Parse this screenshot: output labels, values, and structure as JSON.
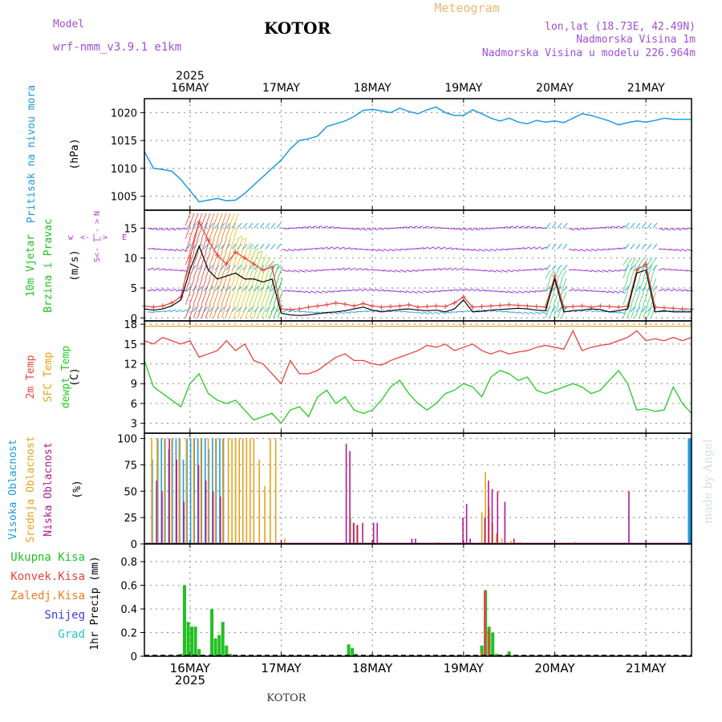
{
  "header": {
    "model_label": "Model",
    "model_name": "wrf-nmm_v3.9.1 e1km",
    "station": "KOTOR",
    "title": "Meteogram",
    "coords": "lon,lat (18.73E, 42.49N)",
    "elevation": "Nadmorska Visina 1m",
    "model_elevation": "Nadmorska Visina u modelu 226.964m",
    "footer_station": "KOTOR",
    "watermark": "made by Angel"
  },
  "colors": {
    "pressure": "#1e9be0",
    "temp2m": "#e8423c",
    "sfc_temp": "#e7a21a",
    "dewpt": "#22cc22",
    "high_cloud": "#1e9be0",
    "mid_cloud": "#e7a21a",
    "low_cloud": "#b5198f",
    "total_precip": "#22c022",
    "conv_precip": "#e8423c",
    "frz_precip": "#f07a1e",
    "snow": "#3b3bd9",
    "graupel": "#1ec9c9",
    "wind_label": "#22c022",
    "dir_label": "#b03ad0",
    "header_purple": "#a050d8",
    "title_orange": "#e9b870"
  },
  "chart_data": [
    {
      "type": "line",
      "panel": "pressure",
      "ylabel": "(hPa)",
      "side_label": "Pritisak na nivou mora",
      "yticks": [
        1005,
        1010,
        1015,
        1020
      ],
      "ylim": [
        1002.5,
        1022.5
      ],
      "x_day": [
        -0.5,
        -0.4,
        -0.3,
        -0.2,
        -0.1,
        0.0,
        0.1,
        0.2,
        0.3,
        0.4,
        0.5,
        0.6,
        0.7,
        0.8,
        0.9,
        1.0,
        1.1,
        1.2,
        1.3,
        1.4,
        1.5,
        1.6,
        1.7,
        1.8,
        1.9,
        2.0,
        2.1,
        2.2,
        2.3,
        2.4,
        2.5,
        2.6,
        2.7,
        2.8,
        2.9,
        3.0,
        3.1,
        3.2,
        3.3,
        3.4,
        3.5,
        3.6,
        3.7,
        3.8,
        3.9,
        4.0,
        4.1,
        4.2,
        4.3,
        4.4,
        4.5,
        4.6,
        4.7,
        4.8,
        4.9,
        5.0,
        5.1,
        5.2,
        5.3,
        5.4,
        5.5
      ],
      "values": [
        1013.0,
        1010.0,
        1009.8,
        1009.5,
        1008.0,
        1006.0,
        1004.0,
        1004.3,
        1004.6,
        1004.2,
        1004.3,
        1005.5,
        1007.0,
        1008.5,
        1010.0,
        1011.5,
        1013.5,
        1015.0,
        1015.3,
        1015.8,
        1017.5,
        1018.0,
        1018.5,
        1019.3,
        1020.4,
        1020.6,
        1020.3,
        1020.0,
        1020.8,
        1020.2,
        1019.8,
        1020.5,
        1021.0,
        1020.0,
        1019.5,
        1019.5,
        1020.5,
        1019.8,
        1019.0,
        1018.5,
        1019.0,
        1018.3,
        1018.0,
        1018.6,
        1018.3,
        1018.5,
        1018.2,
        1019.0,
        1019.8,
        1019.5,
        1019.0,
        1018.5,
        1017.8,
        1018.2,
        1018.5,
        1018.3,
        1018.6,
        1019.0,
        1018.8,
        1018.8,
        1018.8
      ]
    },
    {
      "type": "line",
      "panel": "wind",
      "ylabel": "(m/s)",
      "side_label_1": "10m Vjetar",
      "side_label_2": "Brzina i Pravac",
      "dir_labels": [
        "w",
        "<-",
        "|",
        "->",
        "E"
      ],
      "dir_labels_v": [
        "S<",
        "-",
        "|",
        "-",
        ">",
        "N"
      ],
      "yticks": [
        0,
        5,
        10,
        15
      ],
      "ylim": [
        -0.5,
        18
      ],
      "levels": [
        1.0,
        4.5,
        8.0,
        11.5,
        15.0
      ],
      "series": [
        {
          "name": "",
          "x_day": [
            -0.5,
            -0.4,
            -0.3,
            -0.2,
            -0.1,
            0.0,
            0.1,
            0.2,
            0.3,
            0.4,
            0.5,
            0.6,
            0.7,
            0.8,
            0.9,
            1.0,
            1.1,
            1.2,
            1.3,
            1.4,
            1.5,
            1.6,
            1.7,
            1.8,
            1.9,
            2.0,
            2.1,
            2.2,
            2.3,
            2.4,
            2.5,
            2.6,
            2.7,
            2.8,
            2.9,
            3.0,
            3.1,
            3.2,
            3.3,
            3.4,
            3.5,
            3.6,
            3.7,
            3.8,
            3.9,
            4.0,
            4.1,
            4.2,
            4.3,
            4.4,
            4.5,
            4.6,
            4.7,
            4.8,
            4.9,
            5.0,
            5.1,
            5.2,
            5.3,
            5.4,
            5.5
          ],
          "values": [
            1.5,
            1.3,
            1.5,
            2.0,
            3.0,
            8.0,
            12.0,
            8.0,
            6.5,
            7.0,
            7.5,
            6.5,
            6.5,
            6.0,
            6.5,
            0.8,
            0.5,
            0.4,
            0.5,
            0.7,
            0.9,
            1.0,
            1.2,
            1.5,
            1.8,
            1.3,
            1.0,
            1.2,
            1.4,
            1.5,
            1.3,
            1.2,
            1.3,
            1.0,
            1.5,
            3.0,
            1.0,
            1.1,
            1.3,
            1.4,
            1.5,
            1.6,
            1.5,
            1.3,
            1.2,
            6.5,
            1.0,
            1.2,
            1.3,
            1.5,
            1.4,
            1.0,
            1.2,
            1.5,
            7.5,
            8.0,
            1.0,
            1.2,
            1.0,
            1.0,
            1.0
          ]
        },
        {
          "name": "",
          "x_day": [
            -0.5,
            -0.4,
            -0.3,
            -0.2,
            -0.1,
            0.0,
            0.1,
            0.2,
            0.3,
            0.4,
            0.5,
            0.6,
            0.7,
            0.8,
            0.9,
            1.0,
            1.1,
            1.2,
            1.3,
            1.4,
            1.5,
            1.6,
            1.7,
            1.8,
            1.9,
            2.0,
            2.1,
            2.2,
            2.3,
            2.4,
            2.5,
            2.6,
            2.7,
            2.8,
            2.9,
            3.0,
            3.1,
            3.2,
            3.3,
            3.4,
            3.5,
            3.6,
            3.7,
            3.8,
            3.9,
            4.0,
            4.1,
            4.2,
            4.3,
            4.4,
            4.5,
            4.6,
            4.7,
            4.8,
            4.9,
            5.0,
            5.1,
            5.2,
            5.3,
            5.4,
            5.5
          ],
          "values": [
            2.0,
            1.8,
            2.0,
            2.5,
            3.5,
            10.0,
            16.0,
            13.0,
            10.5,
            9.0,
            11.0,
            10.0,
            9.0,
            8.0,
            8.5,
            1.5,
            1.4,
            1.5,
            1.8,
            2.0,
            2.2,
            2.5,
            2.3,
            2.0,
            2.4,
            2.0,
            1.8,
            1.9,
            2.0,
            2.2,
            1.8,
            1.9,
            2.0,
            1.9,
            2.5,
            3.5,
            1.8,
            1.9,
            2.0,
            2.1,
            2.2,
            2.1,
            2.0,
            1.9,
            1.8,
            7.0,
            1.8,
            1.9,
            2.0,
            1.8,
            2.0,
            1.9,
            1.8,
            2.0,
            8.0,
            9.0,
            1.8,
            1.7,
            1.6,
            1.5,
            1.5
          ]
        }
      ]
    },
    {
      "type": "line",
      "panel": "temperature",
      "ylabel": "(C)",
      "side_label_1": "2m Temp",
      "side_label_2": "SFC Temp",
      "side_label_3": "dewpt Temp",
      "yticks": [
        3,
        6,
        9,
        12,
        15,
        18
      ],
      "ylim": [
        1.5,
        18.5
      ],
      "series": [
        {
          "name": "2m Temp",
          "x_day": [
            -0.5,
            -0.4,
            -0.3,
            -0.2,
            -0.1,
            0.0,
            0.1,
            0.2,
            0.3,
            0.4,
            0.5,
            0.6,
            0.7,
            0.8,
            0.9,
            1.0,
            1.1,
            1.2,
            1.3,
            1.4,
            1.5,
            1.6,
            1.7,
            1.8,
            1.9,
            2.0,
            2.1,
            2.2,
            2.3,
            2.4,
            2.5,
            2.6,
            2.7,
            2.8,
            2.9,
            3.0,
            3.1,
            3.2,
            3.3,
            3.4,
            3.5,
            3.6,
            3.7,
            3.8,
            3.9,
            4.0,
            4.1,
            4.2,
            4.3,
            4.4,
            4.5,
            4.6,
            4.7,
            4.8,
            4.9,
            5.0,
            5.1,
            5.2,
            5.3,
            5.4,
            5.5
          ],
          "values": [
            15.5,
            15.0,
            16.0,
            15.5,
            15.0,
            15.5,
            13.0,
            13.5,
            14.0,
            15.5,
            14.0,
            15.0,
            12.5,
            12.0,
            10.5,
            9.0,
            12.5,
            10.5,
            10.5,
            11.0,
            12.0,
            13.0,
            13.5,
            12.5,
            12.5,
            12.0,
            11.8,
            12.5,
            13.0,
            13.5,
            14.0,
            14.8,
            14.5,
            15.0,
            14.0,
            14.5,
            15.0,
            14.0,
            13.5,
            14.0,
            13.5,
            13.8,
            14.0,
            14.5,
            14.8,
            14.5,
            14.2,
            17.0,
            14.0,
            14.5,
            14.8,
            15.0,
            15.5,
            16.0,
            17.0,
            15.5,
            15.8,
            15.5,
            16.0,
            15.5,
            16.0
          ]
        },
        {
          "name": "SFC Temp",
          "x_day": [
            -0.5,
            5.5
          ],
          "values": [
            17.7,
            17.7
          ]
        },
        {
          "name": "dewpt Temp",
          "x_day": [
            -0.5,
            -0.4,
            -0.3,
            -0.2,
            -0.1,
            0.0,
            0.1,
            0.2,
            0.3,
            0.4,
            0.5,
            0.6,
            0.7,
            0.8,
            0.9,
            1.0,
            1.1,
            1.2,
            1.3,
            1.4,
            1.5,
            1.6,
            1.7,
            1.8,
            1.9,
            2.0,
            2.1,
            2.2,
            2.3,
            2.4,
            2.5,
            2.6,
            2.7,
            2.8,
            2.9,
            3.0,
            3.1,
            3.2,
            3.3,
            3.4,
            3.5,
            3.6,
            3.7,
            3.8,
            3.9,
            4.0,
            4.1,
            4.2,
            4.3,
            4.4,
            4.5,
            4.6,
            4.7,
            4.8,
            4.9,
            5.0,
            5.1,
            5.2,
            5.3,
            5.4,
            5.5
          ],
          "values": [
            12.5,
            8.5,
            7.5,
            6.5,
            5.5,
            9.0,
            10.5,
            7.5,
            6.5,
            6.0,
            6.5,
            5.0,
            3.5,
            4.0,
            4.5,
            3.0,
            5.0,
            5.5,
            4.0,
            7.0,
            8.0,
            6.0,
            7.0,
            5.0,
            4.5,
            5.0,
            6.5,
            8.5,
            9.5,
            7.5,
            6.0,
            5.0,
            6.0,
            7.5,
            8.0,
            9.0,
            8.5,
            7.0,
            10.0,
            11.0,
            10.5,
            9.5,
            10.0,
            8.0,
            7.5,
            8.0,
            8.5,
            9.0,
            8.5,
            7.5,
            8.0,
            9.5,
            11.0,
            9.0,
            5.0,
            5.2,
            4.8,
            5.0,
            8.5,
            6.0,
            4.5
          ]
        }
      ]
    },
    {
      "type": "bar",
      "panel": "cloud",
      "ylabel": "(%)",
      "side_label_1": "Visoka Oblacnost",
      "side_label_2": "Srednja Oblacnost",
      "side_label_3": "Niska Oblacnost",
      "yticks": [
        0,
        25,
        50,
        75,
        100
      ],
      "ylim": [
        0,
        105
      ],
      "series": [
        {
          "name": "Visoka Oblacnost",
          "x_day": [
            -0.42,
            -0.36,
            -0.32,
            -0.28,
            -0.24,
            -0.2,
            -0.16,
            -0.12,
            -0.08,
            -0.04,
            0.0,
            0.04,
            0.08,
            0.12,
            0.16,
            0.2,
            0.24,
            0.28,
            0.32,
            0.36,
            5.46
          ],
          "values": [
            80,
            100,
            100,
            100,
            90,
            100,
            100,
            100,
            80,
            100,
            100,
            100,
            100,
            100,
            100,
            90,
            100,
            100,
            100,
            100,
            100
          ]
        },
        {
          "name": "Srednja Oblacnost",
          "x_day": [
            -0.44,
            -0.38,
            -0.3,
            -0.22,
            -0.14,
            -0.06,
            0.02,
            0.1,
            0.18,
            0.26,
            0.34,
            0.4,
            0.44,
            0.48,
            0.52,
            0.56,
            0.6,
            0.64,
            0.68,
            0.74,
            0.8,
            0.86,
            0.92,
            1.02,
            1.74,
            1.78,
            1.82,
            2.7,
            3.18,
            3.22,
            3.26,
            3.3,
            3.34,
            3.4,
            3.5,
            3.6,
            4.2
          ],
          "values": [
            100,
            100,
            100,
            100,
            100,
            100,
            100,
            100,
            100,
            100,
            100,
            100,
            100,
            100,
            100,
            100,
            100,
            100,
            100,
            80,
            55,
            100,
            100,
            5,
            25,
            20,
            18,
            2,
            30,
            68,
            35,
            20,
            10,
            5,
            3,
            2,
            2
          ]
        },
        {
          "name": "Niska Oblacnost",
          "x_day": [
            -0.4,
            -0.34,
            -0.26,
            -0.18,
            -0.1,
            0.06,
            0.14,
            0.22,
            0.3,
            1.68,
            1.72,
            1.76,
            1.8,
            1.86,
            1.98,
            2.02,
            2.4,
            2.44,
            2.96,
            3.0,
            3.04,
            3.2,
            3.24,
            3.28,
            3.34,
            3.42,
            3.52,
            4.78
          ],
          "values": [
            60,
            50,
            100,
            80,
            40,
            75,
            60,
            50,
            45,
            95,
            88,
            20,
            18,
            20,
            20,
            20,
            5,
            5,
            25,
            38,
            5,
            25,
            60,
            52,
            50,
            40,
            5,
            50
          ]
        }
      ]
    },
    {
      "type": "bar",
      "panel": "precip",
      "ylabel": "1hr Precip (mm)",
      "side_label_1": "Ukupna Kisa",
      "side_label_2": "Konvek.Kisa",
      "side_label_3": "Zaledj.Kisa",
      "side_label_4": "Snijeg",
      "side_label_5": "Grad",
      "yticks": [
        0,
        0.2,
        0.4,
        0.6,
        0.8
      ],
      "ylim": [
        0,
        0.95
      ],
      "series": [
        {
          "name": "Ukupna Kisa",
          "x_day": [
            -0.1,
            -0.06,
            -0.02,
            0.02,
            0.06,
            0.1,
            0.24,
            0.28,
            0.32,
            0.36,
            0.4,
            0.44,
            1.74,
            1.78,
            1.82,
            3.2,
            3.24,
            3.28,
            3.32,
            3.36,
            3.5
          ],
          "values": [
            0.02,
            0.6,
            0.29,
            0.25,
            0.25,
            0.06,
            0.4,
            0.15,
            0.18,
            0.29,
            0.09,
            0.02,
            0.1,
            0.07,
            0.02,
            0.09,
            0.56,
            0.25,
            0.2,
            0.02,
            0.04
          ]
        },
        {
          "name": "Konvek.Kisa",
          "x_day": [
            3.24,
            3.28
          ],
          "values": [
            0.55,
            0.22
          ]
        },
        {
          "name": "Zaledj.Kisa",
          "x_day": [
            3.2
          ],
          "values": [
            0.03
          ]
        }
      ]
    }
  ],
  "x_axis": {
    "top_year": "2025",
    "bottom_year": "2025",
    "days": [
      "16MAY",
      "17MAY",
      "18MAY",
      "19MAY",
      "20MAY",
      "21MAY"
    ],
    "range_days": [
      -0.5,
      5.5
    ]
  }
}
